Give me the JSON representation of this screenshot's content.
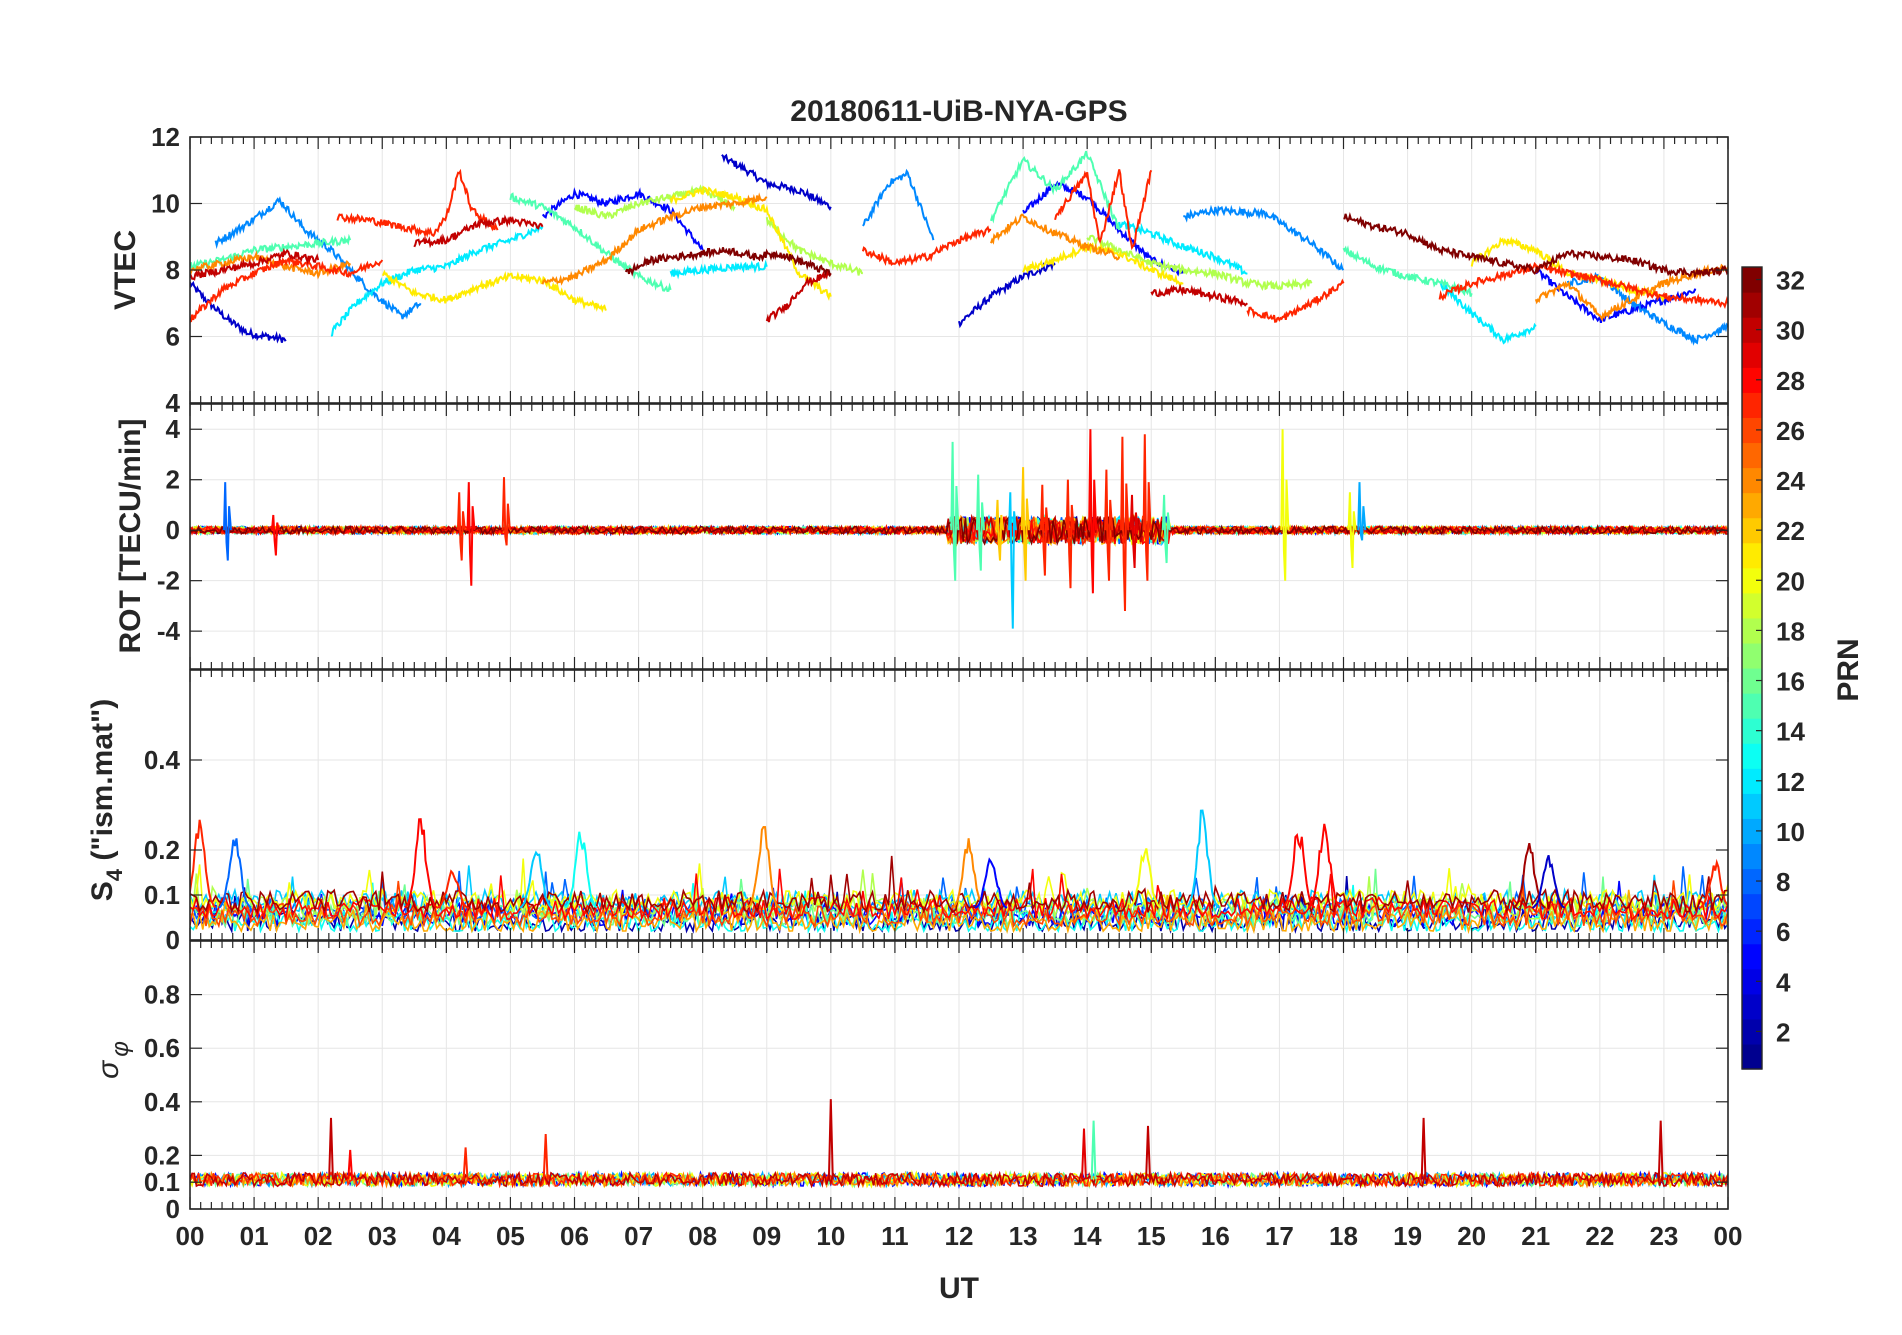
{
  "chart_data": [
    {
      "type": "line",
      "panel": "vtec",
      "title": "20180611-UiB-NYA-GPS",
      "ylabel": "VTEC",
      "ylim": [
        4,
        12
      ],
      "yticks": [
        "4",
        "6",
        "8",
        "10",
        "12"
      ],
      "grid": true,
      "series": [
        {
          "prn": 3,
          "x": [
            0.0,
            0.3,
            0.6,
            0.9,
            1.2,
            1.5
          ],
          "y": [
            7.6,
            7.0,
            6.5,
            6.1,
            6.0,
            5.9
          ]
        },
        {
          "prn": 3,
          "x": [
            8.3,
            8.6,
            9.0,
            9.5,
            10.0
          ],
          "y": [
            11.4,
            11.1,
            10.6,
            10.4,
            9.9
          ]
        },
        {
          "prn": 3,
          "x": [
            12.0,
            12.5,
            13.0,
            13.5
          ],
          "y": [
            6.4,
            7.2,
            7.8,
            8.2
          ]
        },
        {
          "prn": 5,
          "x": [
            5.5,
            6.0,
            6.5,
            7.0,
            7.5,
            8.0
          ],
          "y": [
            9.6,
            10.3,
            10.0,
            10.3,
            9.8,
            8.6
          ]
        },
        {
          "prn": 5,
          "x": [
            13.0,
            13.5,
            14.0,
            14.5,
            15.0,
            15.5
          ],
          "y": [
            9.7,
            10.6,
            10.2,
            9.2,
            8.3,
            7.9
          ]
        },
        {
          "prn": 5,
          "x": [
            21.0,
            21.5,
            22.0,
            22.5,
            23.0,
            23.5
          ],
          "y": [
            8.0,
            7.2,
            6.5,
            6.8,
            7.1,
            7.4
          ]
        },
        {
          "prn": 9,
          "x": [
            0.4,
            0.9,
            1.4,
            1.8,
            2.2,
            2.8,
            3.3,
            3.6
          ],
          "y": [
            8.8,
            9.4,
            10.1,
            9.2,
            8.6,
            7.4,
            6.6,
            7.0
          ]
        },
        {
          "prn": 9,
          "x": [
            10.5,
            10.9,
            11.2,
            11.6
          ],
          "y": [
            9.3,
            10.6,
            10.9,
            8.9
          ]
        },
        {
          "prn": 9,
          "x": [
            15.5,
            16.0,
            16.8,
            17.5,
            18.0
          ],
          "y": [
            9.6,
            9.8,
            9.7,
            8.8,
            8.0
          ]
        },
        {
          "prn": 9,
          "x": [
            21.5,
            22.0,
            22.5,
            23.0,
            23.5,
            24.0
          ],
          "y": [
            7.6,
            7.8,
            7.0,
            6.4,
            5.9,
            6.3
          ]
        },
        {
          "prn": 12,
          "x": [
            2.2,
            2.6,
            3.0,
            3.5,
            4.0,
            4.5,
            5.0,
            5.5
          ],
          "y": [
            6.1,
            7.0,
            7.6,
            8.0,
            8.1,
            8.6,
            8.9,
            9.3
          ]
        },
        {
          "prn": 12,
          "x": [
            7.5,
            8.0,
            8.5,
            9.0
          ],
          "y": [
            7.9,
            8.0,
            8.1,
            8.1
          ]
        },
        {
          "prn": 12,
          "x": [
            14.5,
            15.0,
            15.5,
            16.0,
            16.5
          ],
          "y": [
            9.4,
            9.1,
            8.7,
            8.4,
            7.9
          ]
        },
        {
          "prn": 12,
          "x": [
            19.5,
            20.0,
            20.5,
            21.0
          ],
          "y": [
            7.6,
            6.7,
            5.9,
            6.3
          ]
        },
        {
          "prn": 15,
          "x": [
            0.0,
            0.5,
            1.0,
            1.5,
            2.0,
            2.5
          ],
          "y": [
            8.1,
            8.3,
            8.6,
            8.7,
            8.8,
            8.9
          ]
        },
        {
          "prn": 15,
          "x": [
            5.0,
            5.5,
            6.0,
            6.5,
            7.0,
            7.5
          ],
          "y": [
            10.2,
            9.9,
            9.3,
            8.5,
            7.8,
            7.4
          ]
        },
        {
          "prn": 15,
          "x": [
            12.5,
            13.0,
            13.5,
            14.0,
            14.5
          ],
          "y": [
            9.5,
            11.3,
            10.4,
            11.5,
            9.2
          ]
        },
        {
          "prn": 15,
          "x": [
            18.0,
            18.5,
            19.0,
            19.5,
            20.0
          ],
          "y": [
            8.6,
            8.1,
            7.8,
            7.6,
            7.3
          ]
        },
        {
          "prn": 18,
          "x": [
            6.0,
            6.5,
            7.0,
            7.5,
            8.0,
            8.5
          ],
          "y": [
            9.9,
            9.6,
            10.0,
            10.2,
            10.4,
            9.9
          ]
        },
        {
          "prn": 18,
          "x": [
            9.0,
            9.5,
            10.0,
            10.5
          ],
          "y": [
            9.5,
            8.6,
            8.2,
            7.9
          ]
        },
        {
          "prn": 18,
          "x": [
            14.0,
            14.5,
            15.0,
            15.5,
            16.0,
            16.5,
            17.0,
            17.5
          ],
          "y": [
            9.0,
            8.6,
            8.2,
            8.0,
            7.9,
            7.6,
            7.5,
            7.6
          ]
        },
        {
          "prn": 21,
          "x": [
            3.0,
            3.5,
            4.0,
            4.5,
            5.0,
            5.5,
            6.0,
            6.5
          ],
          "y": [
            7.9,
            7.3,
            7.1,
            7.5,
            7.8,
            7.7,
            7.1,
            6.8
          ]
        },
        {
          "prn": 21,
          "x": [
            7.5,
            8.0,
            8.5,
            9.0,
            9.5,
            10.0
          ],
          "y": [
            10.1,
            10.4,
            10.2,
            9.8,
            7.9,
            7.2
          ]
        },
        {
          "prn": 21,
          "x": [
            13.0,
            13.5,
            14.0,
            14.5,
            15.0,
            15.5
          ],
          "y": [
            8.0,
            8.3,
            8.7,
            8.5,
            8.0,
            7.6
          ]
        },
        {
          "prn": 21,
          "x": [
            20.0,
            20.5,
            21.0,
            21.5,
            22.0,
            22.5,
            23.0
          ],
          "y": [
            8.2,
            8.9,
            8.6,
            7.9,
            7.7,
            7.4,
            7.2
          ]
        },
        {
          "prn": 24,
          "x": [
            0.0,
            0.5,
            1.0,
            1.5,
            2.0,
            2.5
          ],
          "y": [
            8.0,
            8.2,
            8.4,
            8.1,
            7.9,
            8.2
          ]
        },
        {
          "prn": 24,
          "x": [
            5.5,
            6.0,
            6.5,
            7.0,
            7.5,
            8.0,
            8.5,
            9.0
          ],
          "y": [
            7.6,
            7.8,
            8.3,
            9.2,
            9.6,
            9.9,
            10.0,
            10.2
          ]
        },
        {
          "prn": 24,
          "x": [
            12.5,
            13.0,
            13.5,
            14.0,
            14.5
          ],
          "y": [
            8.9,
            9.6,
            9.1,
            8.7,
            8.4
          ]
        },
        {
          "prn": 24,
          "x": [
            21.0,
            21.5,
            22.0,
            22.5,
            23.0,
            23.5,
            24.0
          ],
          "y": [
            7.1,
            7.6,
            6.6,
            7.1,
            7.6,
            7.9,
            8.1
          ]
        },
        {
          "prn": 27,
          "x": [
            0.0,
            0.5,
            1.0,
            1.5,
            2.0,
            2.5,
            3.0
          ],
          "y": [
            6.5,
            7.4,
            7.9,
            8.3,
            8.1,
            7.9,
            8.3
          ]
        },
        {
          "prn": 27,
          "x": [
            2.3,
            2.8,
            3.3,
            3.8,
            4.0,
            4.2,
            4.4,
            4.8
          ],
          "y": [
            9.6,
            9.5,
            9.3,
            9.1,
            9.6,
            11.0,
            9.8,
            9.2
          ]
        },
        {
          "prn": 27,
          "x": [
            10.5,
            11.0,
            11.5,
            12.0,
            12.5
          ],
          "y": [
            8.6,
            8.2,
            8.4,
            8.9,
            9.2
          ]
        },
        {
          "prn": 27,
          "x": [
            13.5,
            14.0,
            14.2,
            14.5,
            14.7,
            15.0
          ],
          "y": [
            9.6,
            10.9,
            8.8,
            11.0,
            8.6,
            11.0
          ]
        },
        {
          "prn": 27,
          "x": [
            16.5,
            17.0,
            17.5,
            18.0
          ],
          "y": [
            6.8,
            6.5,
            7.0,
            7.6
          ]
        },
        {
          "prn": 27,
          "x": [
            19.5,
            20.0,
            21.0,
            22.0,
            23.0,
            24.0
          ],
          "y": [
            7.2,
            7.6,
            8.1,
            7.7,
            7.2,
            7.0
          ]
        },
        {
          "prn": 30,
          "x": [
            0.0,
            0.5,
            1.0,
            1.5,
            2.0
          ],
          "y": [
            7.8,
            8.0,
            8.2,
            8.5,
            8.3
          ]
        },
        {
          "prn": 30,
          "x": [
            3.5,
            4.0,
            4.5,
            5.0,
            5.5
          ],
          "y": [
            8.8,
            8.9,
            9.4,
            9.5,
            9.3
          ]
        },
        {
          "prn": 30,
          "x": [
            9.0,
            9.3,
            9.6,
            10.0
          ],
          "y": [
            6.5,
            6.9,
            7.6,
            7.9
          ]
        },
        {
          "prn": 30,
          "x": [
            15.0,
            15.5,
            16.0,
            16.5
          ],
          "y": [
            7.3,
            7.4,
            7.2,
            7.0
          ]
        },
        {
          "prn": 32,
          "x": [
            6.8,
            7.2,
            7.6,
            8.0,
            8.4,
            8.8,
            9.2,
            9.6,
            10.0
          ],
          "y": [
            7.9,
            8.3,
            8.4,
            8.5,
            8.6,
            8.4,
            8.5,
            8.2,
            7.9
          ]
        },
        {
          "prn": 32,
          "x": [
            18.0,
            18.5,
            19.0,
            19.5,
            20.0,
            20.5,
            21.0,
            21.5,
            22.0,
            22.5,
            23.0,
            23.5,
            24.0
          ],
          "y": [
            9.6,
            9.3,
            9.1,
            8.6,
            8.4,
            8.2,
            8.0,
            8.5,
            8.4,
            8.3,
            8.0,
            7.9,
            8.0
          ]
        }
      ]
    },
    {
      "type": "line",
      "panel": "rot",
      "ylabel": "ROT [TECU/min]",
      "ylim": [
        -5.5,
        5
      ],
      "yticks": [
        "-4",
        "-2",
        "0",
        "2",
        "4"
      ],
      "grid": true,
      "baseline_noise": 0.15,
      "spikes": [
        {
          "x": 0.55,
          "lo": -1.2,
          "hi": 1.9,
          "prn": 8
        },
        {
          "x": 1.3,
          "lo": -1.0,
          "hi": 0.6,
          "prn": 28
        },
        {
          "x": 4.2,
          "lo": -1.2,
          "hi": 1.5,
          "prn": 27
        },
        {
          "x": 4.35,
          "lo": -2.2,
          "hi": 1.9,
          "prn": 28
        },
        {
          "x": 4.9,
          "lo": -0.6,
          "hi": 2.1,
          "prn": 27
        },
        {
          "x": 11.9,
          "lo": -2.0,
          "hi": 3.5,
          "prn": 15
        },
        {
          "x": 12.3,
          "lo": -1.6,
          "hi": 2.2,
          "prn": 15
        },
        {
          "x": 12.6,
          "lo": -1.2,
          "hi": 1.2,
          "prn": 22
        },
        {
          "x": 12.8,
          "lo": -3.9,
          "hi": 1.5,
          "prn": 11
        },
        {
          "x": 13.0,
          "lo": -2.0,
          "hi": 2.5,
          "prn": 22
        },
        {
          "x": 13.3,
          "lo": -1.8,
          "hi": 1.8,
          "prn": 27
        },
        {
          "x": 13.7,
          "lo": -2.3,
          "hi": 2.0,
          "prn": 27
        },
        {
          "x": 14.05,
          "lo": -2.5,
          "hi": 4.0,
          "prn": 28
        },
        {
          "x": 14.3,
          "lo": -2.0,
          "hi": 2.4,
          "prn": 27
        },
        {
          "x": 14.55,
          "lo": -3.2,
          "hi": 3.7,
          "prn": 27
        },
        {
          "x": 14.7,
          "lo": -1.5,
          "hi": 1.4,
          "prn": 29
        },
        {
          "x": 14.9,
          "lo": -2.0,
          "hi": 3.8,
          "prn": 27
        },
        {
          "x": 15.2,
          "lo": -1.3,
          "hi": 1.4,
          "prn": 15
        },
        {
          "x": 17.05,
          "lo": -2.0,
          "hi": 4.0,
          "prn": 20
        },
        {
          "x": 18.1,
          "lo": -1.5,
          "hi": 1.5,
          "prn": 20
        },
        {
          "x": 18.25,
          "lo": -0.4,
          "hi": 1.9,
          "prn": 10
        }
      ],
      "active_window": [
        11.8,
        15.3
      ]
    },
    {
      "type": "line",
      "panel": "s4",
      "ylabel": "S4 (\"ism.mat\")",
      "ylim": [
        0,
        0.6
      ],
      "yticks": [
        "0",
        "0.1",
        "0.2",
        "0.4"
      ],
      "grid": true,
      "baseline": 0.06,
      "bursts": [
        {
          "x": 0.15,
          "peak": 0.27,
          "prn": 27
        },
        {
          "x": 0.7,
          "peak": 0.24,
          "prn": 8
        },
        {
          "x": 3.6,
          "peak": 0.28,
          "prn": 28
        },
        {
          "x": 4.1,
          "peak": 0.16,
          "prn": 27
        },
        {
          "x": 5.4,
          "peak": 0.22,
          "prn": 11
        },
        {
          "x": 6.1,
          "peak": 0.25,
          "prn": 13
        },
        {
          "x": 8.95,
          "peak": 0.26,
          "prn": 24
        },
        {
          "x": 12.15,
          "peak": 0.23,
          "prn": 24
        },
        {
          "x": 12.5,
          "peak": 0.2,
          "prn": 5
        },
        {
          "x": 14.9,
          "peak": 0.21,
          "prn": 20
        },
        {
          "x": 15.8,
          "peak": 0.3,
          "prn": 11
        },
        {
          "x": 17.3,
          "peak": 0.26,
          "prn": 28
        },
        {
          "x": 17.7,
          "peak": 0.27,
          "prn": 28
        },
        {
          "x": 20.9,
          "peak": 0.22,
          "prn": 31
        },
        {
          "x": 21.2,
          "peak": 0.2,
          "prn": 3
        },
        {
          "x": 23.8,
          "peak": 0.18,
          "prn": 27
        }
      ]
    },
    {
      "type": "line",
      "panel": "sigma_phi",
      "ylabel": "σφ",
      "ylim": [
        0,
        1
      ],
      "yticks": [
        "0",
        "0.1",
        "0.2",
        "0.4",
        "0.6",
        "0.8"
      ],
      "grid": true,
      "baseline": 0.11,
      "spikes": [
        {
          "x": 2.2,
          "peak": 0.34,
          "prn": 30
        },
        {
          "x": 2.5,
          "peak": 0.22,
          "prn": 28
        },
        {
          "x": 4.3,
          "peak": 0.23,
          "prn": 27
        },
        {
          "x": 5.55,
          "peak": 0.28,
          "prn": 27
        },
        {
          "x": 10.0,
          "peak": 0.41,
          "prn": 30
        },
        {
          "x": 13.95,
          "peak": 0.3,
          "prn": 29
        },
        {
          "x": 14.1,
          "peak": 0.33,
          "prn": 15
        },
        {
          "x": 14.95,
          "peak": 0.31,
          "prn": 30
        },
        {
          "x": 19.25,
          "peak": 0.34,
          "prn": 30
        },
        {
          "x": 22.95,
          "peak": 0.33,
          "prn": 30
        }
      ],
      "xlabel": "UT",
      "xlim": [
        0,
        24
      ],
      "xticks": [
        "00",
        "01",
        "02",
        "03",
        "04",
        "05",
        "06",
        "07",
        "08",
        "09",
        "10",
        "11",
        "12",
        "13",
        "14",
        "15",
        "16",
        "17",
        "18",
        "19",
        "20",
        "21",
        "22",
        "23",
        "00"
      ]
    }
  ],
  "colorbar": {
    "label": "PRN",
    "range": [
      1,
      32
    ],
    "ticks": [
      "2",
      "4",
      "6",
      "8",
      "10",
      "12",
      "14",
      "16",
      "18",
      "20",
      "22",
      "24",
      "26",
      "28",
      "30",
      "32"
    ],
    "colormap": [
      "#00008f",
      "#0000ff",
      "#0080ff",
      "#00ffff",
      "#80ff80",
      "#ffff00",
      "#ff8000",
      "#ff0000",
      "#800000"
    ]
  }
}
